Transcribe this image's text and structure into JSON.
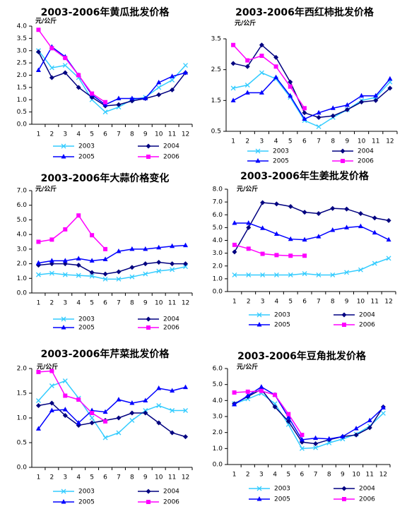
{
  "chart_data": [
    {
      "type": "line",
      "title": "2003-2006年黄瓜批发价格",
      "y_label": "元/公斤",
      "categories": [
        "1",
        "2",
        "3",
        "4",
        "5",
        "6",
        "7",
        "8",
        "9",
        "10",
        "11",
        "12"
      ],
      "ylim": [
        0,
        4
      ],
      "yticks": [
        {
          "value": 0,
          "label": "0.0"
        },
        0.5,
        {
          "value": 1,
          "label": "1.0"
        },
        1.5,
        {
          "value": 2,
          "label": "2.0"
        },
        2.5,
        {
          "value": 3,
          "label": "3.0"
        },
        3.5,
        {
          "value": 4,
          "label": "4.0"
        }
      ],
      "series": [
        {
          "name": "2003",
          "color": "#33ccff",
          "marker": "x",
          "values": [
            3.0,
            2.3,
            2.4,
            1.9,
            1.0,
            0.5,
            0.7,
            1.0,
            1.1,
            1.5,
            1.8,
            2.4
          ]
        },
        {
          "name": "2004",
          "color": "#000080",
          "marker": "diamond",
          "values": [
            2.95,
            1.9,
            2.1,
            1.5,
            1.1,
            0.75,
            0.8,
            0.95,
            1.05,
            1.2,
            1.4,
            2.1
          ]
        },
        {
          "name": "2005",
          "color": "#0000ff",
          "marker": "triangle",
          "values": [
            2.2,
            3.15,
            2.75,
            2.0,
            1.2,
            0.8,
            1.05,
            1.05,
            1.05,
            1.7,
            1.95,
            2.1
          ]
        },
        {
          "name": "2006",
          "color": "#ff00ff",
          "marker": "square",
          "values": [
            3.85,
            3.1,
            2.7,
            2.0,
            1.25,
            0.9,
            null,
            null,
            null,
            null,
            null,
            null
          ]
        }
      ]
    },
    {
      "type": "line",
      "title": "2003-2006年西红柿批发价格",
      "y_label": "元/公斤",
      "categories": [
        "1",
        "2",
        "3",
        "4",
        "5",
        "6",
        "7",
        "8",
        "9",
        "10",
        "11",
        "12"
      ],
      "ylim": [
        0.5,
        3.5
      ],
      "yticks": [
        0.5,
        1.5,
        2.5,
        3.5
      ],
      "series": [
        {
          "name": "2003",
          "color": "#33ccff",
          "marker": "x",
          "values": [
            1.9,
            2.0,
            2.4,
            2.2,
            1.6,
            0.85,
            0.65,
            0.95,
            1.2,
            1.5,
            1.6,
            2.1
          ]
        },
        {
          "name": "2004",
          "color": "#000080",
          "marker": "diamond",
          "values": [
            2.7,
            2.6,
            3.3,
            2.9,
            2.1,
            1.1,
            0.95,
            1.0,
            1.2,
            1.45,
            1.5,
            1.9
          ]
        },
        {
          "name": "2005",
          "color": "#0000ff",
          "marker": "triangle",
          "values": [
            1.5,
            1.75,
            1.75,
            2.25,
            1.65,
            0.9,
            1.1,
            1.25,
            1.35,
            1.65,
            1.65,
            2.2
          ]
        },
        {
          "name": "2006",
          "color": "#ff00ff",
          "marker": "square",
          "values": [
            3.3,
            2.8,
            2.95,
            2.6,
            1.95,
            1.25,
            null,
            null,
            null,
            null,
            null,
            null
          ]
        }
      ]
    },
    {
      "type": "line",
      "title": "2003-2006年大蒜价格变化",
      "y_label": "元/公斤",
      "categories": [
        "1",
        "2",
        "3",
        "4",
        "5",
        "6",
        "7",
        "8",
        "9",
        "10",
        "11",
        "12"
      ],
      "ylim": [
        0,
        7
      ],
      "yticks": [
        {
          "value": 0,
          "label": "0.0"
        },
        {
          "value": 1,
          "label": "1.0"
        },
        {
          "value": 2,
          "label": "2.0"
        },
        {
          "value": 3,
          "label": "3.0"
        },
        {
          "value": 4,
          "label": "4.0"
        },
        {
          "value": 5,
          "label": "5.0"
        },
        {
          "value": 6,
          "label": "6.0"
        },
        {
          "value": 7,
          "label": "7.0"
        }
      ],
      "series": [
        {
          "name": "2003",
          "color": "#33ccff",
          "marker": "x",
          "values": [
            1.25,
            1.35,
            1.25,
            1.2,
            1.15,
            0.95,
            0.95,
            1.1,
            1.3,
            1.5,
            1.6,
            1.8
          ]
        },
        {
          "name": "2004",
          "color": "#000080",
          "marker": "diamond",
          "values": [
            1.9,
            2.0,
            2.0,
            1.9,
            1.4,
            1.3,
            1.45,
            1.75,
            2.0,
            2.1,
            2.0,
            2.0
          ]
        },
        {
          "name": "2005",
          "color": "#0000ff",
          "marker": "triangle",
          "values": [
            2.05,
            2.2,
            2.2,
            2.35,
            2.2,
            2.3,
            2.85,
            3.0,
            3.0,
            3.1,
            3.2,
            3.25
          ]
        },
        {
          "name": "2006",
          "color": "#ff00ff",
          "marker": "square",
          "values": [
            3.5,
            3.65,
            4.35,
            5.3,
            3.95,
            3.0,
            null,
            null,
            null,
            null,
            null,
            null
          ]
        }
      ]
    },
    {
      "type": "line",
      "title": "2003-2006年生姜批发价格",
      "y_label": "元/公斤",
      "categories": [
        "1",
        "2",
        "3",
        "4",
        "5",
        "6",
        "7",
        "8",
        "9",
        "10",
        "11",
        "12"
      ],
      "ylim": [
        0,
        8
      ],
      "yticks": [
        {
          "value": 0,
          "label": "0.0"
        },
        {
          "value": 1,
          "label": "1.0"
        },
        {
          "value": 2,
          "label": "2.0"
        },
        {
          "value": 3,
          "label": "3.0"
        },
        {
          "value": 4,
          "label": "4.0"
        },
        {
          "value": 5,
          "label": "5.0"
        },
        {
          "value": 6,
          "label": "6.0"
        },
        {
          "value": 7,
          "label": "7.0"
        },
        {
          "value": 8,
          "label": "8.0"
        }
      ],
      "series": [
        {
          "name": "2003",
          "color": "#33ccff",
          "marker": "x",
          "values": [
            1.3,
            1.3,
            1.3,
            1.3,
            1.3,
            1.4,
            1.3,
            1.3,
            1.5,
            1.7,
            2.2,
            2.6
          ]
        },
        {
          "name": "2004",
          "color": "#000080",
          "marker": "diamond",
          "values": [
            3.1,
            5.0,
            6.95,
            6.85,
            6.65,
            6.2,
            6.1,
            6.5,
            6.45,
            6.1,
            5.75,
            5.55
          ]
        },
        {
          "name": "2005",
          "color": "#0000ff",
          "marker": "triangle",
          "values": [
            5.35,
            5.35,
            4.95,
            4.5,
            4.1,
            4.05,
            4.3,
            4.8,
            5.0,
            5.1,
            4.6,
            4.05
          ]
        },
        {
          "name": "2006",
          "color": "#ff00ff",
          "marker": "square",
          "values": [
            3.65,
            3.35,
            2.95,
            2.85,
            2.8,
            2.8,
            null,
            null,
            null,
            null,
            null,
            null
          ]
        }
      ]
    },
    {
      "type": "line",
      "title": "2003-2006年芹菜批发价格",
      "y_label": "元/公斤",
      "categories": [
        "1",
        "2",
        "3",
        "4",
        "5",
        "6",
        "7",
        "8",
        "9",
        "10",
        "11",
        "12"
      ],
      "ylim": [
        0,
        2
      ],
      "yticks": [
        {
          "value": 0,
          "label": "0.0"
        },
        0.5,
        {
          "value": 1,
          "label": "1.0"
        },
        1.5,
        {
          "value": 2,
          "label": "2.0"
        }
      ],
      "series": [
        {
          "name": "2003",
          "color": "#33ccff",
          "marker": "x",
          "values": [
            1.35,
            1.65,
            1.75,
            1.4,
            1.0,
            0.6,
            0.7,
            0.95,
            1.15,
            1.25,
            1.15,
            1.15
          ]
        },
        {
          "name": "2004",
          "color": "#000080",
          "marker": "diamond",
          "values": [
            1.25,
            1.3,
            1.05,
            0.85,
            0.9,
            0.95,
            1.0,
            1.1,
            1.1,
            0.9,
            0.7,
            0.62
          ]
        },
        {
          "name": "2005",
          "color": "#0000ff",
          "marker": "triangle",
          "values": [
            0.78,
            1.15,
            1.17,
            0.9,
            1.15,
            1.12,
            1.37,
            1.3,
            1.35,
            1.6,
            1.55,
            1.62
          ]
        },
        {
          "name": "2006",
          "color": "#ff00ff",
          "marker": "square",
          "values": [
            1.93,
            1.95,
            1.45,
            1.37,
            1.1,
            0.93,
            null,
            null,
            null,
            null,
            null,
            null
          ]
        }
      ]
    },
    {
      "type": "line",
      "title": "2003-2006年豆角批发价格",
      "y_label": "元/公斤",
      "categories": [
        "1",
        "2",
        "3",
        "4",
        "5",
        "6",
        "7",
        "8",
        "9",
        "10",
        "11",
        "12"
      ],
      "ylim": [
        0,
        6
      ],
      "yticks": [
        {
          "value": 0,
          "label": "0.0"
        },
        {
          "value": 1,
          "label": "1.0"
        },
        {
          "value": 2,
          "label": "2.0"
        },
        {
          "value": 3,
          "label": "3.0"
        },
        {
          "value": 4,
          "label": "4.0"
        },
        {
          "value": 5,
          "label": "5.0"
        },
        {
          "value": 6,
          "label": "6.0"
        }
      ],
      "series": [
        {
          "name": "2003",
          "color": "#33ccff",
          "marker": "x",
          "values": [
            3.8,
            4.1,
            4.45,
            3.8,
            2.5,
            1.0,
            1.05,
            1.35,
            1.6,
            1.9,
            2.4,
            3.2
          ]
        },
        {
          "name": "2004",
          "color": "#000080",
          "marker": "diamond",
          "values": [
            3.8,
            4.25,
            4.7,
            3.6,
            2.7,
            1.4,
            1.3,
            1.55,
            1.75,
            1.85,
            2.3,
            3.6
          ]
        },
        {
          "name": "2005",
          "color": "#0000ff",
          "marker": "triangle",
          "values": [
            3.75,
            4.3,
            4.85,
            4.35,
            2.95,
            1.55,
            1.65,
            1.6,
            1.75,
            2.25,
            2.75,
            3.55
          ]
        },
        {
          "name": "2006",
          "color": "#ff00ff",
          "marker": "square",
          "values": [
            4.5,
            4.55,
            4.6,
            4.35,
            3.15,
            1.85,
            null,
            null,
            null,
            null,
            null,
            null
          ]
        }
      ]
    }
  ]
}
